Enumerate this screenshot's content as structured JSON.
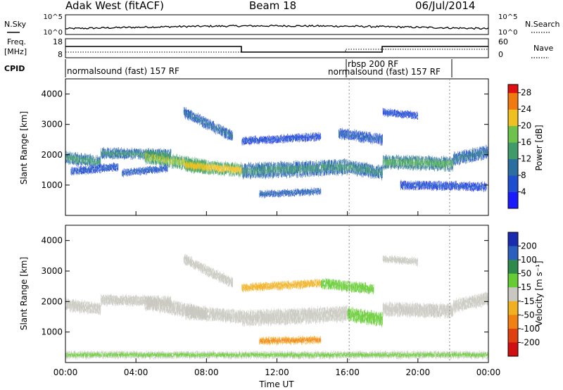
{
  "header": {
    "site": "Adak West (fitACF)",
    "beam": "Beam 18",
    "date": "06/Jul/2014"
  },
  "labels": {
    "nsky": "N.Sky",
    "nsearch": "N.Search",
    "freq_line1": "Freq.",
    "freq_line2": "[MHz]",
    "nave": "Nave",
    "cpid": "CPID"
  },
  "noise_axis": {
    "left_ticks": [
      "10^5",
      "10^0"
    ],
    "right_ticks": [
      "10^5",
      "10^0"
    ]
  },
  "freq_axis": {
    "left_ticks": [
      "18",
      "8"
    ],
    "right_ticks": [
      "60",
      "0"
    ]
  },
  "cpid_segments": [
    {
      "name": "normalsound (fast) 157 RF",
      "start": 0.0,
      "end": 16.1
    },
    {
      "name": "rbsp 200 RF",
      "start": 16.1,
      "end": 17.9
    },
    {
      "name": "normalsound (fast) 157 RF",
      "start": 17.9,
      "end": 21.8
    }
  ],
  "chart_data": [
    {
      "type": "heatmap",
      "panel": "power",
      "xlabel": "",
      "ylabel": "Slant Range [km]",
      "xlim": [
        0,
        24
      ],
      "ylim": [
        0,
        4500
      ],
      "yticks": [
        1000,
        2000,
        3000,
        4000
      ],
      "colorbar": {
        "label": "Power [dB]",
        "ticks": [
          4,
          8,
          12,
          16,
          20,
          24,
          28
        ],
        "range": [
          0,
          30
        ]
      },
      "bands": [
        {
          "t0": 0.0,
          "t1": 2.0,
          "r0": 1900,
          "r1": 1750,
          "w": 350,
          "v": 15
        },
        {
          "t0": 0.3,
          "t1": 3.0,
          "r0": 1450,
          "r1": 1600,
          "w": 220,
          "v": 8
        },
        {
          "t0": 2.0,
          "t1": 6.0,
          "r0": 2050,
          "r1": 2000,
          "w": 300,
          "v": 14
        },
        {
          "t0": 4.5,
          "t1": 8.0,
          "r0": 1950,
          "r1": 1600,
          "w": 400,
          "v": 22
        },
        {
          "t0": 6.8,
          "t1": 10.0,
          "r0": 1650,
          "r1": 1500,
          "w": 380,
          "v": 25
        },
        {
          "t0": 3.2,
          "t1": 5.8,
          "r0": 1400,
          "r1": 1550,
          "w": 200,
          "v": 9
        },
        {
          "t0": 6.7,
          "t1": 9.5,
          "r0": 3400,
          "r1": 2600,
          "w": 300,
          "v": 11
        },
        {
          "t0": 10.0,
          "t1": 16.0,
          "r0": 1450,
          "r1": 1600,
          "w": 450,
          "v": 14
        },
        {
          "t0": 10.0,
          "t1": 14.5,
          "r0": 2450,
          "r1": 2600,
          "w": 220,
          "v": 7
        },
        {
          "t0": 11.0,
          "t1": 14.5,
          "r0": 700,
          "r1": 800,
          "w": 180,
          "v": 10
        },
        {
          "t0": 16.0,
          "t1": 18.0,
          "r0": 1600,
          "r1": 1400,
          "w": 400,
          "v": 14
        },
        {
          "t0": 15.5,
          "t1": 18.0,
          "r0": 2700,
          "r1": 2500,
          "w": 300,
          "v": 9
        },
        {
          "t0": 18.0,
          "t1": 22.0,
          "r0": 1750,
          "r1": 1700,
          "w": 400,
          "v": 17
        },
        {
          "t0": 19.0,
          "t1": 23.9,
          "r0": 1000,
          "r1": 950,
          "w": 250,
          "v": 7
        },
        {
          "t0": 22.0,
          "t1": 24.0,
          "r0": 1850,
          "r1": 2100,
          "w": 380,
          "v": 12
        },
        {
          "t0": 18.0,
          "t1": 20.0,
          "r0": 3400,
          "r1": 3300,
          "w": 200,
          "v": 7
        }
      ]
    },
    {
      "type": "heatmap",
      "panel": "velocity",
      "xlabel": "Time UT",
      "ylabel": "Slant Range [km]",
      "xlim": [
        0,
        24
      ],
      "ylim": [
        0,
        4500
      ],
      "yticks": [
        1000,
        2000,
        3000,
        4000
      ],
      "xticks": [
        "00:00",
        "04:00",
        "08:00",
        "12:00",
        "16:00",
        "20:00",
        "00:00"
      ],
      "colorbar": {
        "label": "Velocity [m s⁻¹]",
        "ticks": [
          200,
          100,
          50,
          15,
          -15,
          -50,
          -100,
          -200
        ],
        "range": [
          -250,
          250
        ]
      },
      "bands": [
        {
          "t0": 0.0,
          "t1": 2.0,
          "r0": 1900,
          "r1": 1750,
          "w": 350,
          "v": 0
        },
        {
          "t0": 2.0,
          "t1": 6.0,
          "r0": 2050,
          "r1": 2000,
          "w": 300,
          "v": 0
        },
        {
          "t0": 4.5,
          "t1": 8.0,
          "r0": 1950,
          "r1": 1600,
          "w": 400,
          "v": 0
        },
        {
          "t0": 6.8,
          "t1": 10.0,
          "r0": 1650,
          "r1": 1500,
          "w": 380,
          "v": 0
        },
        {
          "t0": 6.7,
          "t1": 9.5,
          "r0": 3400,
          "r1": 2600,
          "w": 300,
          "v": 0
        },
        {
          "t0": 10.0,
          "t1": 16.0,
          "r0": 1450,
          "r1": 1600,
          "w": 450,
          "v": 0
        },
        {
          "t0": 10.0,
          "t1": 14.5,
          "r0": 2450,
          "r1": 2600,
          "w": 220,
          "v": -40
        },
        {
          "t0": 11.0,
          "t1": 14.5,
          "r0": 700,
          "r1": 750,
          "w": 200,
          "v": -60
        },
        {
          "t0": 14.5,
          "t1": 17.5,
          "r0": 2600,
          "r1": 2400,
          "w": 300,
          "v": 40
        },
        {
          "t0": 16.0,
          "t1": 18.0,
          "r0": 1600,
          "r1": 1400,
          "w": 400,
          "v": 30
        },
        {
          "t0": 18.0,
          "t1": 22.0,
          "r0": 1750,
          "r1": 1700,
          "w": 400,
          "v": 0
        },
        {
          "t0": 22.0,
          "t1": 24.0,
          "r0": 1850,
          "r1": 2100,
          "w": 380,
          "v": 0
        },
        {
          "t0": 18.0,
          "t1": 20.0,
          "r0": 3400,
          "r1": 3300,
          "w": 200,
          "v": 0
        },
        {
          "t0": 0.0,
          "t1": 24.0,
          "r0": 250,
          "r1": 250,
          "w": 200,
          "v": 20
        }
      ]
    }
  ]
}
